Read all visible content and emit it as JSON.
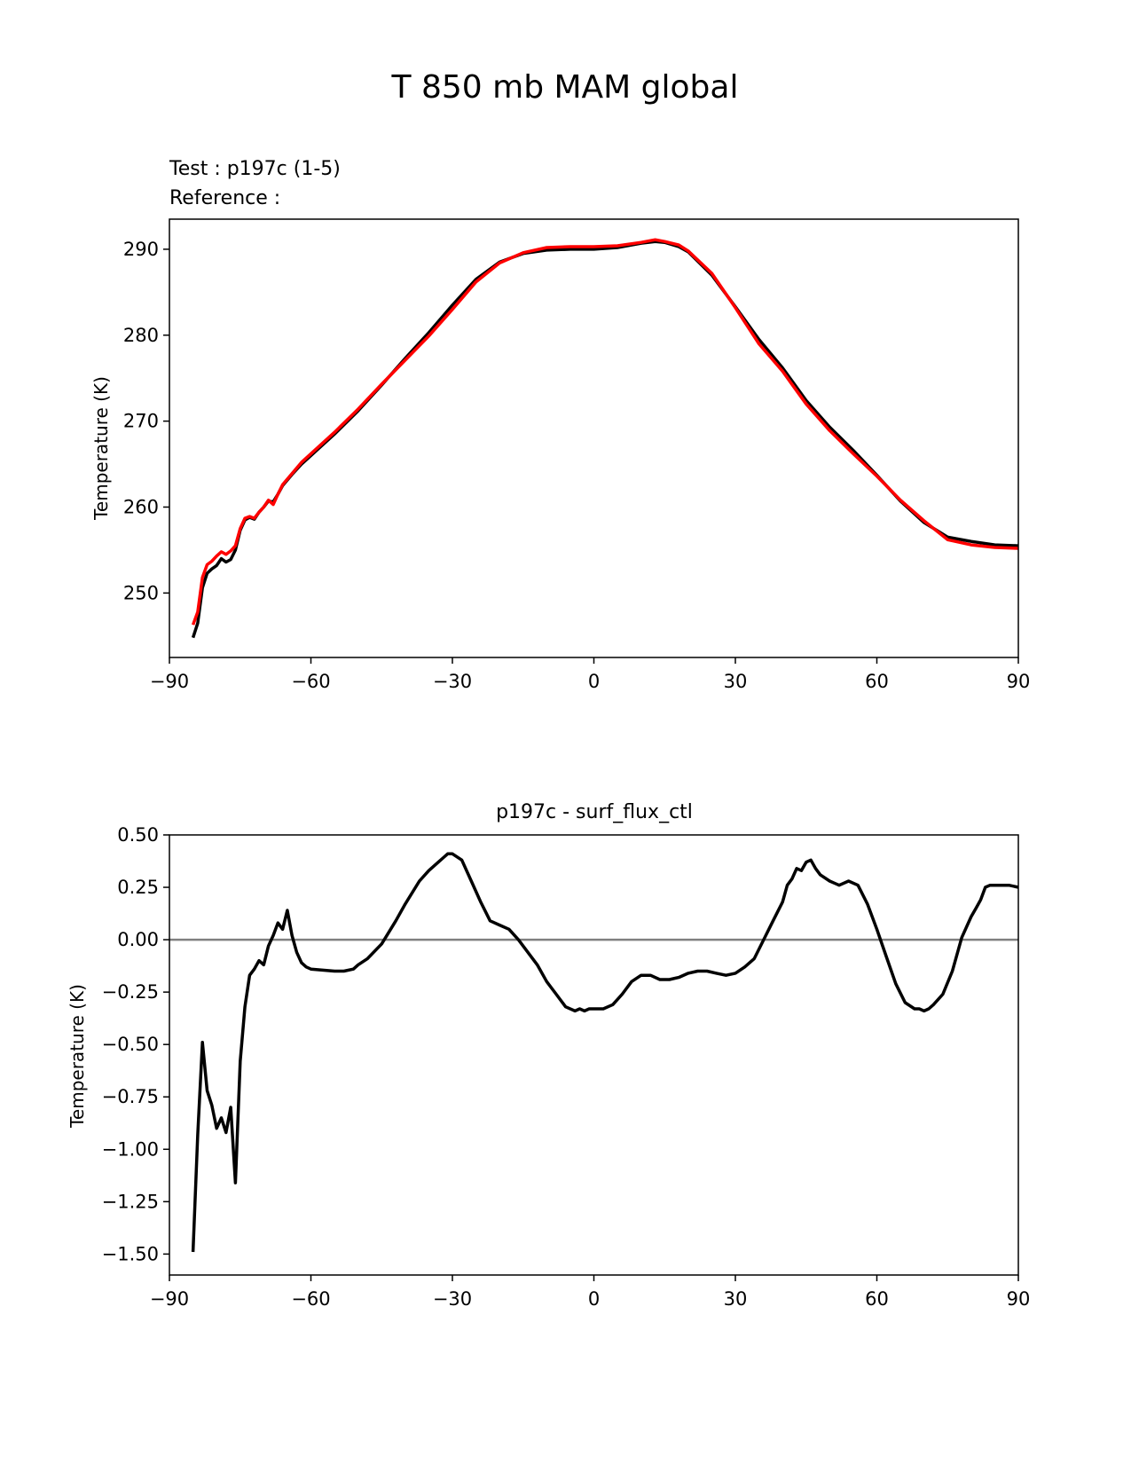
{
  "figure": {
    "title": "T 850 mb MAM global"
  },
  "chart_data": [
    {
      "type": "line",
      "legend_texts": [
        {
          "text": "Test : p197c (1-5)",
          "color": "#000000"
        },
        {
          "text": "Reference :",
          "color": "#ff0000"
        }
      ],
      "title": "",
      "xlabel": "",
      "ylabel": "Temperature (K)",
      "xlim": [
        -90,
        90
      ],
      "ylim": [
        242.5,
        293.5
      ],
      "xticks": [
        -90,
        -60,
        -30,
        0,
        30,
        60,
        90
      ],
      "xtick_labels": [
        "−90",
        "−60",
        "−30",
        "0",
        "30",
        "60",
        "90"
      ],
      "yticks": [
        250,
        260,
        270,
        280,
        290
      ],
      "ytick_labels": [
        "250",
        "260",
        "270",
        "280",
        "290"
      ],
      "grid": false,
      "series": [
        {
          "color": "#000000",
          "x": [
            -85,
            -84,
            -83,
            -82,
            -81,
            -80,
            -79,
            -78,
            -77,
            -76,
            -75,
            -74,
            -73,
            -72,
            -71,
            -70,
            -69,
            -68,
            -67,
            -66,
            -64,
            -62,
            -60,
            -55,
            -50,
            -45,
            -40,
            -35,
            -30,
            -25,
            -20,
            -15,
            -10,
            -5,
            0,
            5,
            10,
            13,
            15,
            18,
            20,
            25,
            30,
            35,
            40,
            45,
            50,
            55,
            60,
            65,
            70,
            75,
            80,
            85,
            90
          ],
          "y": [
            244.8,
            246.5,
            250.6,
            252.3,
            252.8,
            253.2,
            254.0,
            253.6,
            253.9,
            255.0,
            257.3,
            258.5,
            258.8,
            258.6,
            259.4,
            260.0,
            260.7,
            260.6,
            261.5,
            262.5,
            263.8,
            265.0,
            266.0,
            268.5,
            271.2,
            274.2,
            277.3,
            280.3,
            283.5,
            286.5,
            288.5,
            289.5,
            289.9,
            290.0,
            290.0,
            290.2,
            290.7,
            290.9,
            290.8,
            290.3,
            289.7,
            287.0,
            283.3,
            279.5,
            276.2,
            272.4,
            269.3,
            266.6,
            263.7,
            260.7,
            258.2,
            256.5,
            256.0,
            255.6,
            255.5
          ]
        },
        {
          "color": "#ff0000",
          "x": [
            -85,
            -84,
            -83,
            -82,
            -81,
            -80,
            -79,
            -78,
            -77,
            -76,
            -75,
            -74,
            -73,
            -72,
            -71,
            -70,
            -69,
            -68,
            -67,
            -66,
            -64,
            -62,
            -60,
            -55,
            -50,
            -45,
            -40,
            -35,
            -30,
            -25,
            -20,
            -15,
            -10,
            -5,
            0,
            5,
            10,
            13,
            15,
            18,
            20,
            25,
            30,
            35,
            40,
            45,
            50,
            55,
            60,
            65,
            70,
            75,
            80,
            85,
            90
          ],
          "y": [
            246.3,
            247.8,
            251.8,
            253.3,
            253.7,
            254.3,
            254.8,
            254.5,
            254.9,
            255.5,
            257.5,
            258.7,
            258.9,
            258.7,
            259.4,
            260.0,
            260.8,
            260.3,
            261.5,
            262.6,
            263.9,
            265.2,
            266.2,
            268.7,
            271.4,
            274.3,
            277.1,
            279.9,
            283.0,
            286.2,
            288.4,
            289.6,
            290.2,
            290.3,
            290.3,
            290.4,
            290.8,
            291.1,
            290.9,
            290.5,
            289.8,
            287.2,
            283.2,
            279.0,
            275.8,
            272.0,
            268.9,
            266.2,
            263.6,
            260.8,
            258.4,
            256.2,
            255.6,
            255.3,
            255.2
          ]
        }
      ]
    },
    {
      "type": "line",
      "title": "p197c - surf_flux_ctl",
      "xlabel": "",
      "ylabel": "Temperature (K)",
      "xlim": [
        -90,
        90
      ],
      "ylim": [
        -1.6,
        0.5
      ],
      "xticks": [
        -90,
        -60,
        -30,
        0,
        30,
        60,
        90
      ],
      "xtick_labels": [
        "−90",
        "−60",
        "−30",
        "0",
        "30",
        "60",
        "90"
      ],
      "yticks": [
        0.5,
        0.25,
        0.0,
        -0.25,
        -0.5,
        -0.75,
        -1.0,
        -1.25,
        -1.5
      ],
      "ytick_labels": [
        "0.50",
        "0.25",
        "0.00",
        "−0.25",
        "−0.50",
        "−0.75",
        "−1.00",
        "−1.25",
        "−1.50"
      ],
      "grid": false,
      "zero_line_color": "#808080",
      "series": [
        {
          "color": "#000000",
          "x": [
            -85,
            -84,
            -83,
            -82,
            -81,
            -80,
            -79,
            -78,
            -77,
            -76,
            -75,
            -74,
            -73,
            -72,
            -71,
            -70,
            -69,
            -68,
            -67,
            -66,
            -65,
            -64,
            -63,
            -62,
            -61,
            -60,
            -55,
            -53,
            -51,
            -50,
            -48,
            -45,
            -42,
            -40,
            -37,
            -35,
            -33,
            -32,
            -31,
            -30,
            -28,
            -26,
            -24,
            -22,
            -20,
            -18,
            -16,
            -14,
            -12,
            -10,
            -8,
            -6,
            -4,
            -3,
            -2,
            -1,
            0,
            2,
            4,
            6,
            8,
            10,
            12,
            14,
            16,
            18,
            20,
            22,
            24,
            26,
            28,
            30,
            32,
            34,
            36,
            38,
            40,
            41,
            42,
            43,
            44,
            45,
            46,
            47,
            48,
            50,
            51,
            52,
            54,
            56,
            58,
            60,
            62,
            64,
            66,
            68,
            69,
            70,
            71,
            72,
            74,
            76,
            78,
            80,
            81,
            82,
            83,
            84,
            86,
            88,
            90
          ],
          "y": [
            -1.49,
            -0.93,
            -0.49,
            -0.72,
            -0.79,
            -0.9,
            -0.85,
            -0.92,
            -0.8,
            -1.16,
            -0.58,
            -0.32,
            -0.17,
            -0.14,
            -0.1,
            -0.12,
            -0.03,
            0.02,
            0.08,
            0.05,
            0.14,
            0.02,
            -0.06,
            -0.11,
            -0.13,
            -0.14,
            -0.15,
            -0.15,
            -0.14,
            -0.12,
            -0.09,
            -0.02,
            0.09,
            0.17,
            0.28,
            0.33,
            0.37,
            0.39,
            0.41,
            0.41,
            0.38,
            0.28,
            0.18,
            0.09,
            0.07,
            0.05,
            0.0,
            -0.06,
            -0.12,
            -0.2,
            -0.26,
            -0.32,
            -0.34,
            -0.33,
            -0.34,
            -0.33,
            -0.33,
            -0.33,
            -0.31,
            -0.26,
            -0.2,
            -0.17,
            -0.17,
            -0.19,
            -0.19,
            -0.18,
            -0.16,
            -0.15,
            -0.15,
            -0.16,
            -0.17,
            -0.16,
            -0.13,
            -0.09,
            0.0,
            0.09,
            0.18,
            0.26,
            0.29,
            0.34,
            0.33,
            0.37,
            0.38,
            0.34,
            0.31,
            0.28,
            0.27,
            0.26,
            0.28,
            0.26,
            0.17,
            0.05,
            -0.08,
            -0.21,
            -0.3,
            -0.33,
            -0.33,
            -0.34,
            -0.33,
            -0.31,
            -0.26,
            -0.15,
            0.01,
            0.11,
            0.15,
            0.19,
            0.25,
            0.26,
            0.26,
            0.26,
            0.25
          ]
        }
      ]
    }
  ]
}
